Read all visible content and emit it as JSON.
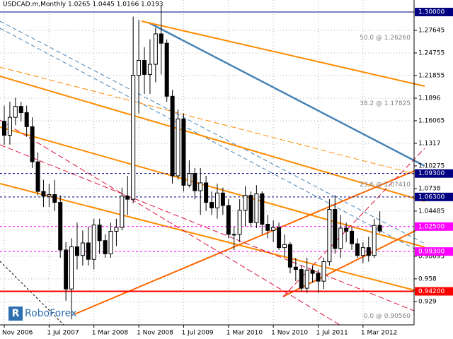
{
  "chart_data": {
    "type": "candlestick",
    "title": "USDCAD.m,Monthly  1.0265 1.0445 1.0166 1.0193",
    "logo": "RoboForex",
    "categories": [
      "Nov 2006",
      null,
      null,
      null,
      null,
      null,
      null,
      null,
      "1 Jul 2007",
      null,
      null,
      null,
      null,
      null,
      null,
      null,
      "1 Mar 2008",
      null,
      null,
      null,
      null,
      null,
      null,
      null,
      "1 Nov 2008",
      null,
      null,
      null,
      null,
      null,
      null,
      null,
      "1 Jul 2009",
      null,
      null,
      null,
      null,
      null,
      null,
      null,
      "1 Mar 2010",
      null,
      null,
      null,
      null,
      null,
      null,
      null,
      "1 Nov 2010",
      null,
      null,
      null,
      null,
      null,
      null,
      null,
      "1 Jul 2011",
      null,
      null,
      null,
      null,
      null,
      null,
      null,
      "1 Mar 2012",
      null,
      null,
      null
    ],
    "open": [
      1.16,
      1.142,
      1.165,
      1.179,
      1.171,
      1.153,
      1.108,
      1.07,
      1.064,
      1.066,
      1.056,
      0.995,
      0.945,
      0.999,
      0.988,
      1.004,
      0.983,
      1.027,
      1.007,
      0.99,
      1.019,
      1.024,
      1.064,
      1.06,
      1.219,
      1.238,
      1.22,
      1.233,
      1.272,
      1.26,
      1.192,
      1.09,
      1.163,
      1.078,
      1.093,
      1.071,
      1.081,
      1.056,
      1.049,
      1.068,
      1.052,
      1.015,
      1.015,
      1.046,
      1.065,
      1.03,
      1.067,
      1.028,
      1.02,
      1.024,
      0.998,
      1.002,
      0.973,
      0.97,
      0.946,
      0.969,
      0.965,
      0.955,
      0.98,
      1.047,
      0.997,
      1.023,
      1.019,
      1.003,
      0.988,
      0.998,
      0.988,
      1.0265
    ],
    "high": [
      1.18,
      1.185,
      1.19,
      1.185,
      1.18,
      1.165,
      1.12,
      1.085,
      1.08,
      1.085,
      1.065,
      1.005,
      1.01,
      1.03,
      1.02,
      1.025,
      1.035,
      1.035,
      1.015,
      1.03,
      1.035,
      1.075,
      1.09,
      1.294,
      1.29,
      1.255,
      1.265,
      1.28,
      1.308,
      1.265,
      1.2,
      1.175,
      1.17,
      1.11,
      1.1,
      1.1,
      1.09,
      1.07,
      1.08,
      1.075,
      1.06,
      1.025,
      1.06,
      1.077,
      1.07,
      1.078,
      1.07,
      1.04,
      1.033,
      1.03,
      1.015,
      1.005,
      0.985,
      0.975,
      0.985,
      0.975,
      0.97,
      0.985,
      1.06,
      1.065,
      1.04,
      1.03,
      1.025,
      1.01,
      1.005,
      1.012,
      1.035,
      1.0445
    ],
    "low": [
      1.13,
      1.13,
      1.155,
      1.16,
      1.14,
      1.1,
      1.065,
      1.05,
      1.05,
      1.045,
      0.985,
      0.93,
      0.906,
      0.97,
      0.975,
      0.975,
      0.97,
      0.99,
      0.985,
      0.985,
      1.0,
      1.02,
      1.04,
      1.055,
      1.17,
      1.195,
      1.195,
      1.21,
      1.22,
      1.185,
      1.08,
      1.085,
      1.07,
      1.075,
      1.06,
      1.04,
      1.045,
      1.04,
      1.035,
      1.04,
      1.01,
      0.995,
      1.005,
      1.025,
      1.025,
      1.023,
      1.015,
      1.01,
      1.005,
      0.995,
      0.986,
      0.965,
      0.955,
      0.942,
      0.94,
      0.953,
      0.94,
      0.945,
      0.975,
      0.99,
      0.985,
      1.005,
      0.995,
      0.985,
      0.978,
      0.98,
      0.985,
      1.0166
    ],
    "close": [
      1.142,
      1.165,
      1.179,
      1.171,
      1.153,
      1.108,
      1.07,
      1.064,
      1.066,
      1.056,
      0.995,
      0.945,
      0.999,
      0.988,
      1.004,
      0.983,
      1.027,
      1.007,
      0.99,
      1.019,
      1.024,
      1.064,
      1.06,
      1.219,
      1.238,
      1.22,
      1.233,
      1.272,
      1.26,
      1.192,
      1.09,
      1.163,
      1.078,
      1.093,
      1.071,
      1.081,
      1.056,
      1.049,
      1.068,
      1.052,
      1.015,
      1.015,
      1.046,
      1.065,
      1.03,
      1.067,
      1.028,
      1.02,
      1.024,
      0.998,
      1.002,
      0.973,
      0.97,
      0.946,
      0.969,
      0.965,
      0.955,
      0.98,
      1.047,
      0.997,
      1.023,
      1.019,
      1.003,
      0.988,
      0.998,
      0.988,
      1.0265,
      1.0193
    ],
    "ylim": [
      0.899,
      1.3154
    ],
    "yticks": [
      1.27645,
      1.24755,
      1.21855,
      1.1896,
      1.16065,
      1.1317,
      1.10275,
      1.0738,
      1.04485,
      0.98695,
      0.958,
      0.929
    ],
    "levels": [
      {
        "value": 1.3,
        "label": "1.30000",
        "color": "#000080"
      },
      {
        "value": 1.093,
        "label": "1.09300",
        "color": "#000080"
      },
      {
        "value": 1.063,
        "label": "1.06300",
        "color": "#000080"
      },
      {
        "value": 1.025,
        "label": "1.02500",
        "color": "#ff00ff"
      },
      {
        "value": 0.993,
        "label": "0.99300",
        "color": "#ff00ff"
      },
      {
        "value": 0.942,
        "label": "0.94200",
        "color": "#ff0000"
      }
    ],
    "annotations": [
      {
        "text": "50.0 @ 1.26260",
        "value": 1.2626
      },
      {
        "text": "38.2 @ 1.17825",
        "value": 1.17825
      },
      {
        "text": "23.6 @ 1.07410",
        "value": 1.0741
      },
      {
        "text": "0.0 @ 0.90560",
        "value": 0.9056
      }
    ],
    "grid": true
  }
}
